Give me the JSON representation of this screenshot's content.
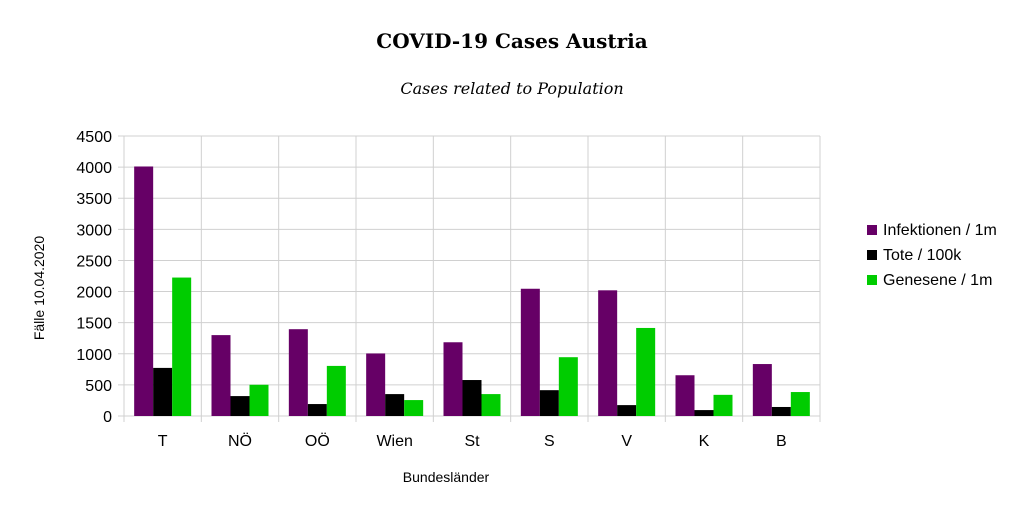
{
  "chart_data": {
    "type": "bar",
    "title": "COVID-19 Cases Austria",
    "subtitle": "Cases related to Population",
    "xlabel": "Bundesländer",
    "ylabel": "Fälle 10.04.2020",
    "ylim": [
      0,
      4500
    ],
    "yticks": [
      0,
      500,
      1000,
      1500,
      2000,
      2500,
      3000,
      3500,
      4000,
      4500
    ],
    "grid": true,
    "legend_position": "right",
    "categories": [
      "T",
      "NÖ",
      "OÖ",
      "Wien",
      "St",
      "S",
      "V",
      "K",
      "B"
    ],
    "series": [
      {
        "name": "Infektionen / 1m",
        "color": "#660066",
        "values": [
          4010,
          1300,
          1395,
          1005,
          1185,
          2045,
          2020,
          655,
          835
        ]
      },
      {
        "name": "Tote / 100k",
        "color": "#000000",
        "values": [
          773,
          320,
          192,
          352,
          578,
          415,
          175,
          95,
          145
        ]
      },
      {
        "name": "Genesene / 1m",
        "color": "#00cc00",
        "values": [
          2225,
          502,
          805,
          256,
          352,
          945,
          1415,
          340,
          385
        ]
      }
    ]
  }
}
